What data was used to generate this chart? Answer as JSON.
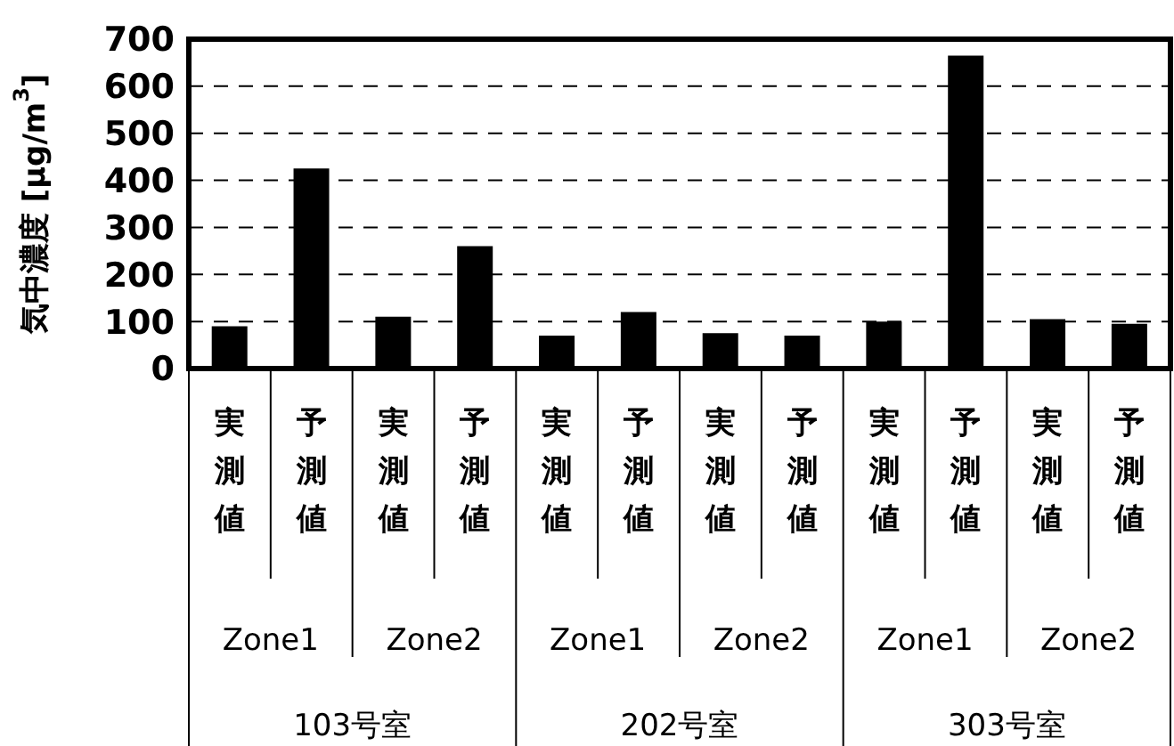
{
  "chart_data": {
    "type": "bar",
    "ylabel": "気中濃度 [μg/m$^{3}$]",
    "categories": [
      "実測値",
      "予測値",
      "実測値",
      "予測値",
      "実測値",
      "予測値",
      "実測値",
      "予測値",
      "実測値",
      "予測値",
      "実測値",
      "予測値"
    ],
    "values": [
      90,
      425,
      110,
      260,
      70,
      120,
      75,
      70,
      100,
      665,
      105,
      95
    ],
    "color": "#000000",
    "ylim": [
      0,
      700
    ],
    "yticks": [
      0,
      100,
      200,
      300,
      400,
      500,
      600,
      700
    ],
    "grid": "y",
    "annotations": [
      "Zone1",
      "Zone2",
      "Zone1",
      "Zone2",
      "Zone1",
      "Zone2",
      "103号室",
      "202号室",
      "303号室"
    ]
  }
}
